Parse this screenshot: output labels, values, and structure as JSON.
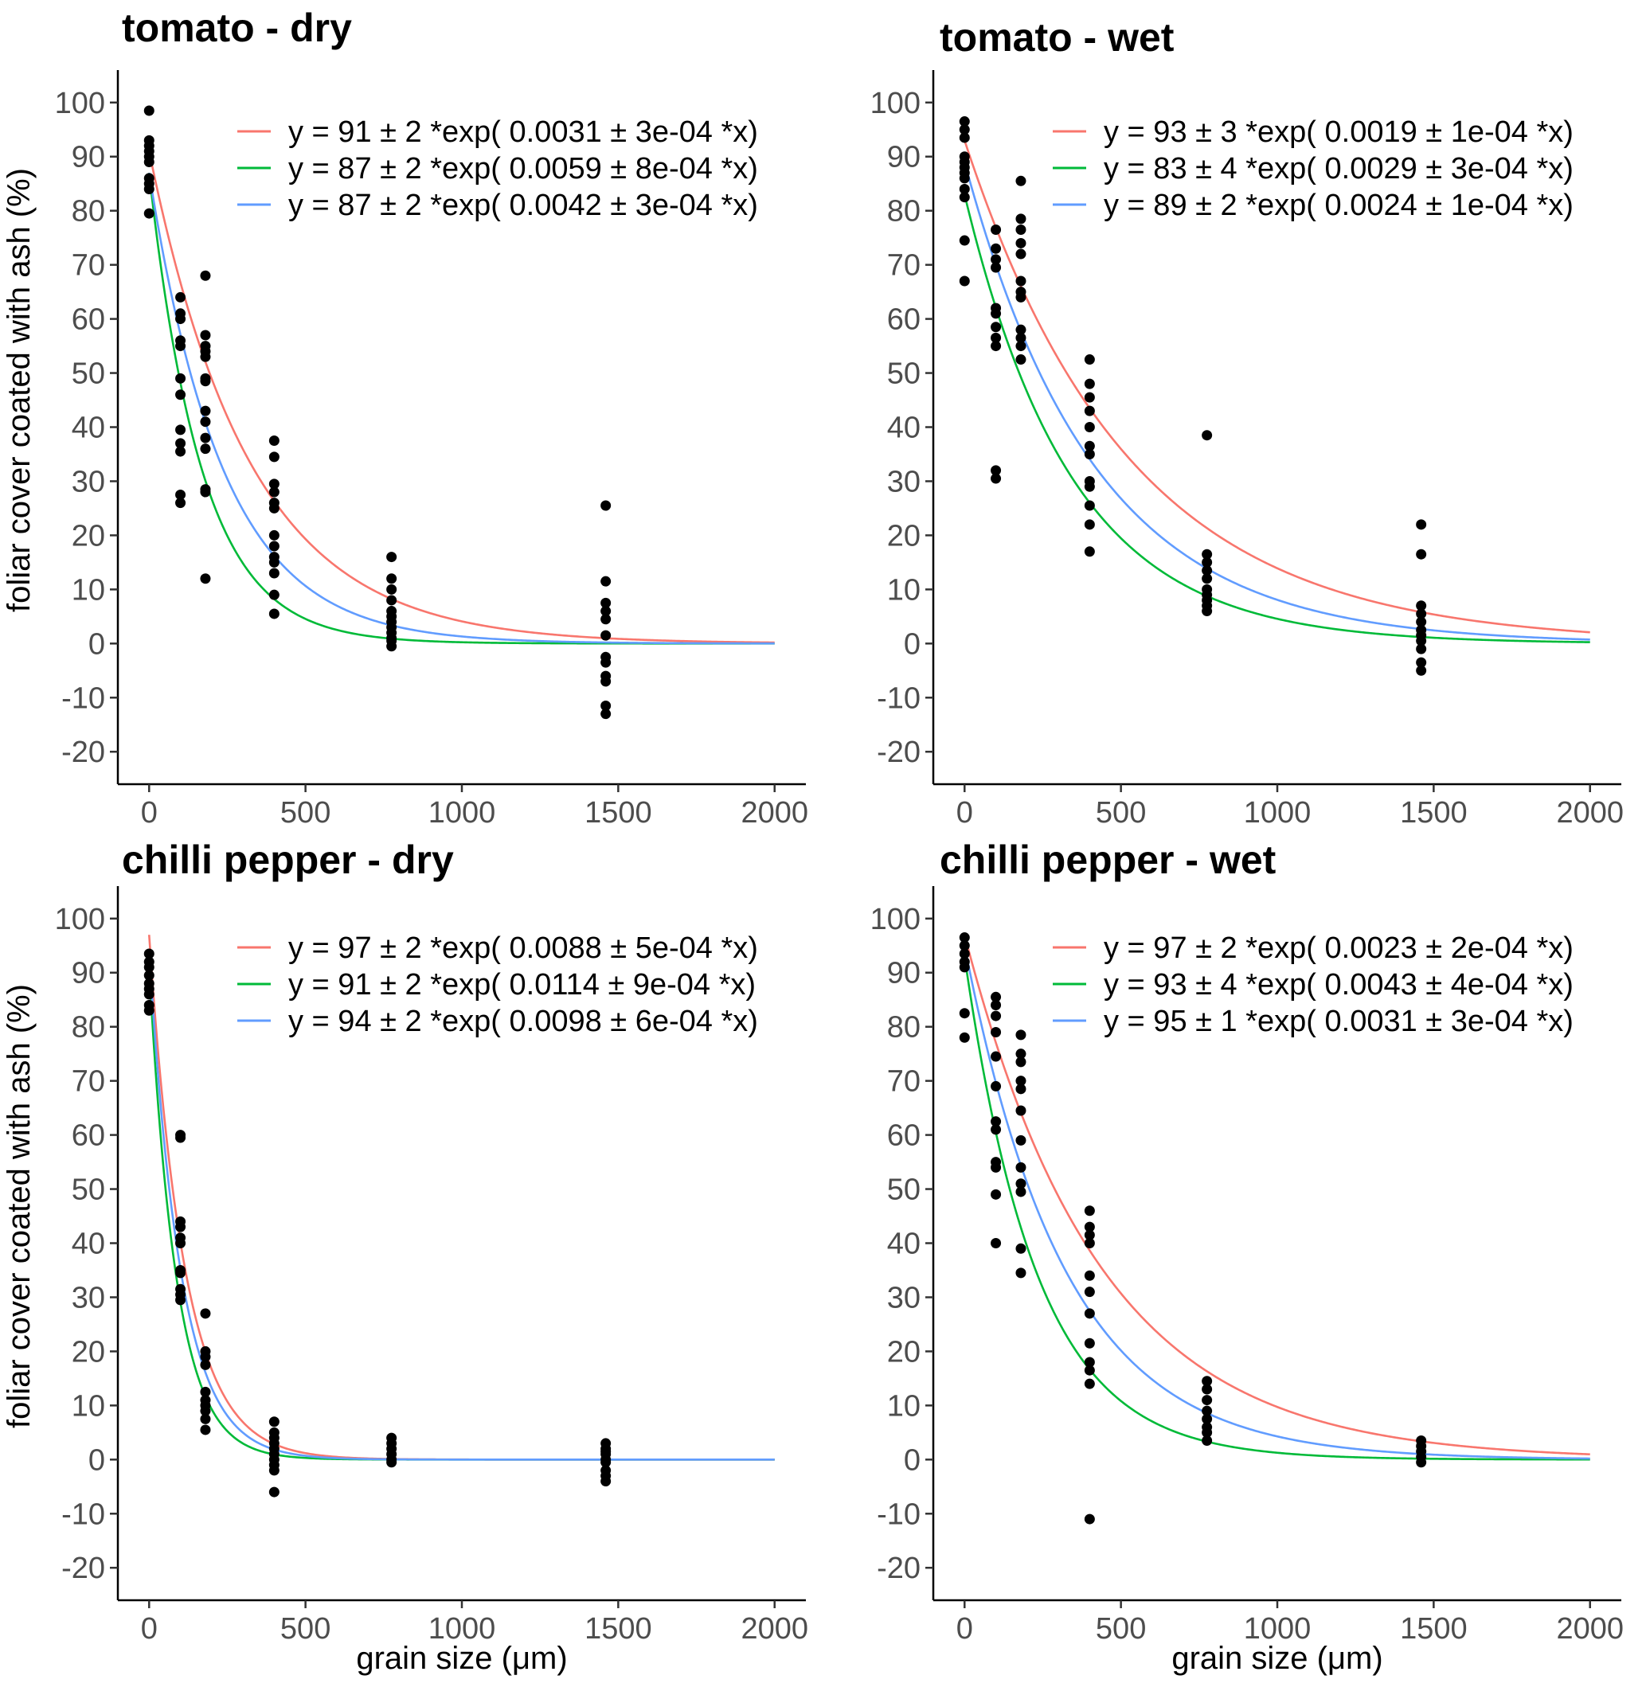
{
  "chart_data": [
    {
      "type": "scatter",
      "title": "tomato - dry",
      "xlabel": "grain size (μm)",
      "ylabel": "foliar cover coated with ash (%)",
      "xlim": [
        -100,
        2100
      ],
      "ylim": [
        -26,
        106
      ],
      "xticks": [
        0,
        500,
        1000,
        1500,
        2000
      ],
      "yticks": [
        -20,
        -10,
        0,
        10,
        20,
        30,
        40,
        50,
        60,
        70,
        80,
        90,
        100
      ],
      "series": [
        {
          "name": "fit 1",
          "color": "#F8766D",
          "a": 91,
          "b": 0.0031,
          "label": "y = 91 ± 2 *exp( 0.0031 ± 3e-04 *x)"
        },
        {
          "name": "fit 2",
          "color": "#00BA38",
          "a": 87,
          "b": 0.0059,
          "label": "y = 87 ± 2 *exp( 0.0059 ± 8e-04 *x)"
        },
        {
          "name": "fit 3",
          "color": "#619CFF",
          "a": 87,
          "b": 0.0042,
          "label": "y = 87 ± 2 *exp( 0.0042 ± 3e-04 *x)"
        }
      ],
      "points": [
        [
          0,
          98.5
        ],
        [
          0,
          93
        ],
        [
          0,
          92
        ],
        [
          0,
          91
        ],
        [
          0,
          90
        ],
        [
          0,
          89
        ],
        [
          0,
          86
        ],
        [
          0,
          85
        ],
        [
          0,
          84
        ],
        [
          0,
          79.5
        ],
        [
          100,
          64
        ],
        [
          100,
          61
        ],
        [
          100,
          60
        ],
        [
          100,
          56
        ],
        [
          100,
          55
        ],
        [
          100,
          49
        ],
        [
          100,
          46
        ],
        [
          100,
          39.5
        ],
        [
          100,
          37
        ],
        [
          100,
          35.5
        ],
        [
          100,
          27.5
        ],
        [
          100,
          26
        ],
        [
          180,
          68
        ],
        [
          180,
          57
        ],
        [
          180,
          55
        ],
        [
          180,
          54
        ],
        [
          180,
          53
        ],
        [
          180,
          49
        ],
        [
          180,
          48.5
        ],
        [
          180,
          43
        ],
        [
          180,
          41
        ],
        [
          180,
          38
        ],
        [
          180,
          36
        ],
        [
          180,
          28.5
        ],
        [
          180,
          28
        ],
        [
          180,
          12
        ],
        [
          400,
          37.5
        ],
        [
          400,
          34.5
        ],
        [
          400,
          29.5
        ],
        [
          400,
          28
        ],
        [
          400,
          26
        ],
        [
          400,
          25
        ],
        [
          400,
          20
        ],
        [
          400,
          18
        ],
        [
          400,
          16
        ],
        [
          400,
          15
        ],
        [
          400,
          13
        ],
        [
          400,
          9
        ],
        [
          400,
          5.5
        ],
        [
          775,
          16
        ],
        [
          775,
          12
        ],
        [
          775,
          10
        ],
        [
          775,
          8
        ],
        [
          775,
          6
        ],
        [
          775,
          5
        ],
        [
          775,
          4
        ],
        [
          775,
          3
        ],
        [
          775,
          2
        ],
        [
          775,
          1
        ],
        [
          775,
          0.5
        ],
        [
          775,
          -0.5
        ],
        [
          1460,
          25.5
        ],
        [
          1460,
          11.5
        ],
        [
          1460,
          7.5
        ],
        [
          1460,
          6
        ],
        [
          1460,
          4.5
        ],
        [
          1460,
          1.5
        ],
        [
          1460,
          -2.5
        ],
        [
          1460,
          -3.5
        ],
        [
          1460,
          -6
        ],
        [
          1460,
          -7
        ],
        [
          1460,
          -11.5
        ],
        [
          1460,
          -13
        ]
      ]
    },
    {
      "type": "scatter",
      "title": "tomato - wet",
      "xlabel": "grain size (μm)",
      "ylabel": "foliar cover coated with ash (%)",
      "xlim": [
        -100,
        2100
      ],
      "ylim": [
        -26,
        106
      ],
      "xticks": [
        0,
        500,
        1000,
        1500,
        2000
      ],
      "yticks": [
        -20,
        -10,
        0,
        10,
        20,
        30,
        40,
        50,
        60,
        70,
        80,
        90,
        100
      ],
      "series": [
        {
          "name": "fit 1",
          "color": "#F8766D",
          "a": 93,
          "b": 0.0019,
          "label": "y = 93 ± 3 *exp( 0.0019 ± 1e-04 *x)"
        },
        {
          "name": "fit 2",
          "color": "#00BA38",
          "a": 83,
          "b": 0.0029,
          "label": "y = 83 ± 4 *exp( 0.0029 ± 3e-04 *x)"
        },
        {
          "name": "fit 3",
          "color": "#619CFF",
          "a": 89,
          "b": 0.0024,
          "label": "y = 89 ± 2 *exp( 0.0024 ± 1e-04 *x)"
        }
      ],
      "points": [
        [
          0,
          96.5
        ],
        [
          0,
          95
        ],
        [
          0,
          93.5
        ],
        [
          0,
          90
        ],
        [
          0,
          89
        ],
        [
          0,
          88
        ],
        [
          0,
          87
        ],
        [
          0,
          86
        ],
        [
          0,
          84
        ],
        [
          0,
          82.5
        ],
        [
          0,
          74.5
        ],
        [
          0,
          67
        ],
        [
          100,
          76.5
        ],
        [
          100,
          73
        ],
        [
          100,
          71
        ],
        [
          100,
          69.5
        ],
        [
          100,
          62
        ],
        [
          100,
          61
        ],
        [
          100,
          58.5
        ],
        [
          100,
          56.5
        ],
        [
          100,
          55
        ],
        [
          100,
          32
        ],
        [
          100,
          30.5
        ],
        [
          180,
          85.5
        ],
        [
          180,
          78.5
        ],
        [
          180,
          76.5
        ],
        [
          180,
          74
        ],
        [
          180,
          72
        ],
        [
          180,
          67
        ],
        [
          180,
          65
        ],
        [
          180,
          64
        ],
        [
          180,
          58
        ],
        [
          180,
          56.5
        ],
        [
          180,
          55
        ],
        [
          180,
          52.5
        ],
        [
          400,
          52.5
        ],
        [
          400,
          48
        ],
        [
          400,
          45.5
        ],
        [
          400,
          43
        ],
        [
          400,
          40
        ],
        [
          400,
          36.5
        ],
        [
          400,
          35
        ],
        [
          400,
          30
        ],
        [
          400,
          29
        ],
        [
          400,
          25.5
        ],
        [
          400,
          22
        ],
        [
          400,
          17
        ],
        [
          775,
          38.5
        ],
        [
          775,
          16.5
        ],
        [
          775,
          15
        ],
        [
          775,
          13.5
        ],
        [
          775,
          12
        ],
        [
          775,
          10
        ],
        [
          775,
          9
        ],
        [
          775,
          8
        ],
        [
          775,
          7
        ],
        [
          775,
          6
        ],
        [
          1460,
          22
        ],
        [
          1460,
          16.5
        ],
        [
          1460,
          7
        ],
        [
          1460,
          5.5
        ],
        [
          1460,
          4
        ],
        [
          1460,
          2.5
        ],
        [
          1460,
          1.5
        ],
        [
          1460,
          0.5
        ],
        [
          1460,
          -1
        ],
        [
          1460,
          -3.5
        ],
        [
          1460,
          -5
        ]
      ]
    },
    {
      "type": "scatter",
      "title": "chilli pepper - dry",
      "xlabel": "grain size (μm)",
      "ylabel": "foliar cover coated with ash (%)",
      "xlim": [
        -100,
        2100
      ],
      "ylim": [
        -26,
        106
      ],
      "xticks": [
        0,
        500,
        1000,
        1500,
        2000
      ],
      "yticks": [
        -20,
        -10,
        0,
        10,
        20,
        30,
        40,
        50,
        60,
        70,
        80,
        90,
        100
      ],
      "series": [
        {
          "name": "fit 1",
          "color": "#F8766D",
          "a": 97,
          "b": 0.0088,
          "label": "y = 97 ± 2 *exp( 0.0088 ± 5e-04 *x)"
        },
        {
          "name": "fit 2",
          "color": "#00BA38",
          "a": 91,
          "b": 0.0114,
          "label": "y = 91 ± 2 *exp( 0.0114 ± 9e-04 *x)"
        },
        {
          "name": "fit 3",
          "color": "#619CFF",
          "a": 94,
          "b": 0.0098,
          "label": "y = 94 ± 2 *exp( 0.0098 ± 6e-04 *x)"
        }
      ],
      "points": [
        [
          0,
          93.5
        ],
        [
          0,
          92
        ],
        [
          0,
          91
        ],
        [
          0,
          89.5
        ],
        [
          0,
          88
        ],
        [
          0,
          87
        ],
        [
          0,
          86
        ],
        [
          0,
          84
        ],
        [
          0,
          83
        ],
        [
          100,
          60
        ],
        [
          100,
          59.5
        ],
        [
          100,
          44
        ],
        [
          100,
          43
        ],
        [
          100,
          41
        ],
        [
          100,
          40
        ],
        [
          100,
          35
        ],
        [
          100,
          34.5
        ],
        [
          100,
          31.5
        ],
        [
          100,
          30.5
        ],
        [
          100,
          29.5
        ],
        [
          180,
          27
        ],
        [
          180,
          20
        ],
        [
          180,
          19
        ],
        [
          180,
          17.5
        ],
        [
          180,
          12.5
        ],
        [
          180,
          11
        ],
        [
          180,
          10
        ],
        [
          180,
          9
        ],
        [
          180,
          7.5
        ],
        [
          180,
          5.5
        ],
        [
          400,
          7
        ],
        [
          400,
          5
        ],
        [
          400,
          4
        ],
        [
          400,
          3
        ],
        [
          400,
          2
        ],
        [
          400,
          1
        ],
        [
          400,
          0
        ],
        [
          400,
          -1
        ],
        [
          400,
          -2
        ],
        [
          400,
          -6
        ],
        [
          775,
          4
        ],
        [
          775,
          3
        ],
        [
          775,
          2
        ],
        [
          775,
          1
        ],
        [
          775,
          0
        ],
        [
          775,
          -0.5
        ],
        [
          1460,
          3
        ],
        [
          1460,
          2
        ],
        [
          1460,
          1.5
        ],
        [
          1460,
          1
        ],
        [
          1460,
          0
        ],
        [
          1460,
          -0.5
        ],
        [
          1460,
          -2
        ],
        [
          1460,
          -3
        ],
        [
          1460,
          -4
        ]
      ]
    },
    {
      "type": "scatter",
      "title": "chilli pepper - wet",
      "xlabel": "grain size (μm)",
      "ylabel": "foliar cover coated with ash (%)",
      "xlim": [
        -100,
        2100
      ],
      "ylim": [
        -26,
        106
      ],
      "xticks": [
        0,
        500,
        1000,
        1500,
        2000
      ],
      "yticks": [
        -20,
        -10,
        0,
        10,
        20,
        30,
        40,
        50,
        60,
        70,
        80,
        90,
        100
      ],
      "series": [
        {
          "name": "fit 1",
          "color": "#F8766D",
          "a": 97,
          "b": 0.0023,
          "label": "y = 97 ± 2 *exp( 0.0023 ± 2e-04 *x)"
        },
        {
          "name": "fit 2",
          "color": "#00BA38",
          "a": 93,
          "b": 0.0043,
          "label": "y = 93 ± 4 *exp( 0.0043 ± 4e-04 *x)"
        },
        {
          "name": "fit 3",
          "color": "#619CFF",
          "a": 95,
          "b": 0.0031,
          "label": "y = 95 ± 1 *exp( 0.0031 ± 3e-04 *x)"
        }
      ],
      "points": [
        [
          0,
          96.5
        ],
        [
          0,
          95
        ],
        [
          0,
          93.5
        ],
        [
          0,
          92
        ],
        [
          0,
          91
        ],
        [
          0,
          82.5
        ],
        [
          0,
          78
        ],
        [
          100,
          85.5
        ],
        [
          100,
          84
        ],
        [
          100,
          82
        ],
        [
          100,
          79
        ],
        [
          100,
          74.5
        ],
        [
          100,
          69
        ],
        [
          100,
          62.5
        ],
        [
          100,
          61
        ],
        [
          100,
          55
        ],
        [
          100,
          54
        ],
        [
          100,
          49
        ],
        [
          100,
          40
        ],
        [
          180,
          78.5
        ],
        [
          180,
          75
        ],
        [
          180,
          73.5
        ],
        [
          180,
          70
        ],
        [
          180,
          68.5
        ],
        [
          180,
          64.5
        ],
        [
          180,
          59
        ],
        [
          180,
          54
        ],
        [
          180,
          51
        ],
        [
          180,
          49.5
        ],
        [
          180,
          39
        ],
        [
          180,
          34.5
        ],
        [
          400,
          46
        ],
        [
          400,
          43
        ],
        [
          400,
          41.5
        ],
        [
          400,
          40
        ],
        [
          400,
          34
        ],
        [
          400,
          31
        ],
        [
          400,
          27
        ],
        [
          400,
          21.5
        ],
        [
          400,
          18
        ],
        [
          400,
          16.5
        ],
        [
          400,
          14
        ],
        [
          400,
          -11
        ],
        [
          775,
          14.5
        ],
        [
          775,
          13
        ],
        [
          775,
          11
        ],
        [
          775,
          9
        ],
        [
          775,
          7.5
        ],
        [
          775,
          6
        ],
        [
          775,
          5
        ],
        [
          775,
          3.5
        ],
        [
          1460,
          3.5
        ],
        [
          1460,
          2.5
        ],
        [
          1460,
          1.5
        ],
        [
          1460,
          0.5
        ],
        [
          1460,
          -0.5
        ]
      ]
    }
  ]
}
